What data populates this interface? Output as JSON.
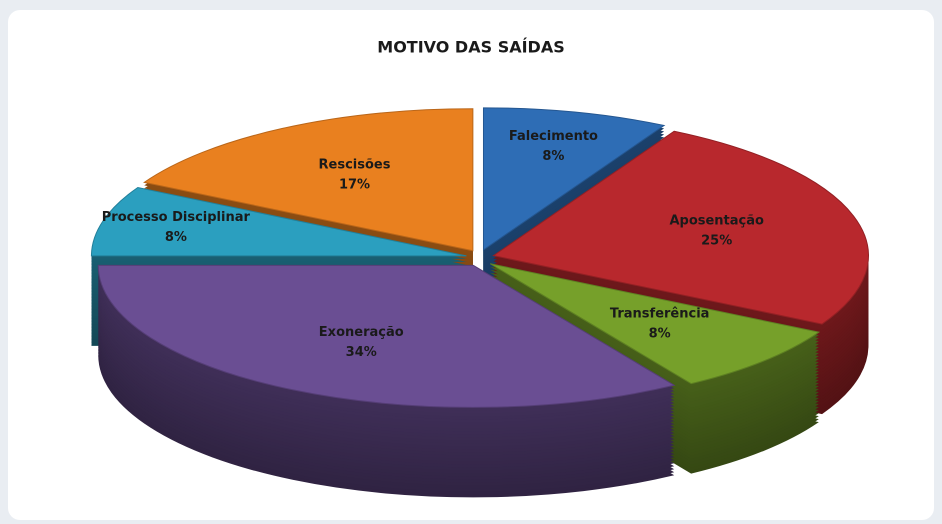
{
  "chart_data": {
    "type": "pie",
    "title": "MOTIVO DAS SAÍDAS",
    "categories": [
      "Falecimento",
      "Aposentação",
      "Transferência",
      "Exoneração",
      "Processo Disciplinar",
      "Rescisões"
    ],
    "values": [
      8,
      25,
      8,
      34,
      8,
      17
    ],
    "value_labels": [
      "8%",
      "25%",
      "8%",
      "34%",
      "8%",
      "17%"
    ],
    "colors": [
      "#2e6db5",
      "#b8282d",
      "#76a02a",
      "#6a4e93",
      "#2b9fbf",
      "#e9801f"
    ]
  }
}
